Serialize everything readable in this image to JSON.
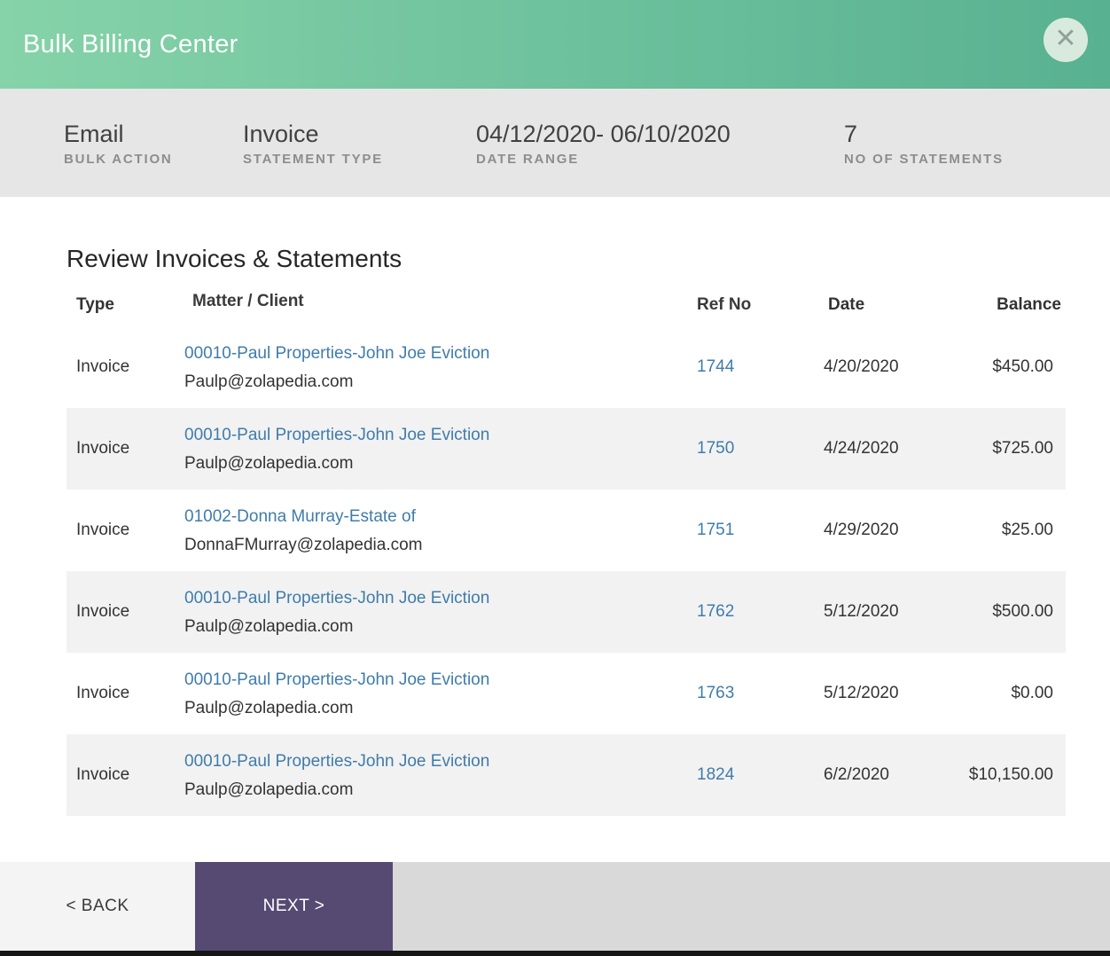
{
  "header": {
    "title": "Bulk Billing Center",
    "close_icon": "✕"
  },
  "summary": {
    "items": [
      {
        "value": "Email",
        "label": "BULK ACTION"
      },
      {
        "value": "Invoice",
        "label": "STATEMENT TYPE"
      },
      {
        "value": "04/12/2020- 06/10/2020",
        "label": "DATE RANGE"
      },
      {
        "value": "7",
        "label": "NO OF STATEMENTS"
      }
    ]
  },
  "review": {
    "heading": "Review Invoices & Statements",
    "table": {
      "columns": [
        "Type",
        "Matter / Client",
        "Ref No",
        "Date",
        "Balance"
      ],
      "rows": [
        {
          "type": "Invoice",
          "matter": "00010-Paul Properties-John Joe Eviction",
          "email": "Paulp@zolapedia.com",
          "ref_no": "1744",
          "date": "4/20/2020",
          "balance": "$450.00"
        },
        {
          "type": "Invoice",
          "matter": "00010-Paul Properties-John Joe Eviction",
          "email": "Paulp@zolapedia.com",
          "ref_no": "1750",
          "date": "4/24/2020",
          "balance": "$725.00"
        },
        {
          "type": "Invoice",
          "matter": "01002-Donna Murray-Estate of",
          "email": "DonnaFMurray@zolapedia.com",
          "ref_no": "1751",
          "date": "4/29/2020",
          "balance": "$25.00"
        },
        {
          "type": "Invoice",
          "matter": "00010-Paul Properties-John Joe Eviction",
          "email": "Paulp@zolapedia.com",
          "ref_no": "1762",
          "date": "5/12/2020",
          "balance": "$500.00"
        },
        {
          "type": "Invoice",
          "matter": "00010-Paul Properties-John Joe Eviction",
          "email": "Paulp@zolapedia.com",
          "ref_no": "1763",
          "date": "5/12/2020",
          "balance": "$0.00"
        },
        {
          "type": "Invoice",
          "matter": "00010-Paul Properties-John Joe Eviction",
          "email": "Paulp@zolapedia.com",
          "ref_no": "1824",
          "date": "6/2/2020",
          "balance": "$10,150.00"
        }
      ]
    }
  },
  "footer": {
    "back_label": "< BACK",
    "next_label": "NEXT >"
  },
  "colors": {
    "header_gradient_start": "#86d3a9",
    "header_gradient_end": "#58b191",
    "summary_bar": "#e6e6e6",
    "link": "#3f7cab",
    "row_stripe": "#f2f2f2",
    "next_button": "#564a73",
    "back_button_bg": "#f4f4f4"
  }
}
